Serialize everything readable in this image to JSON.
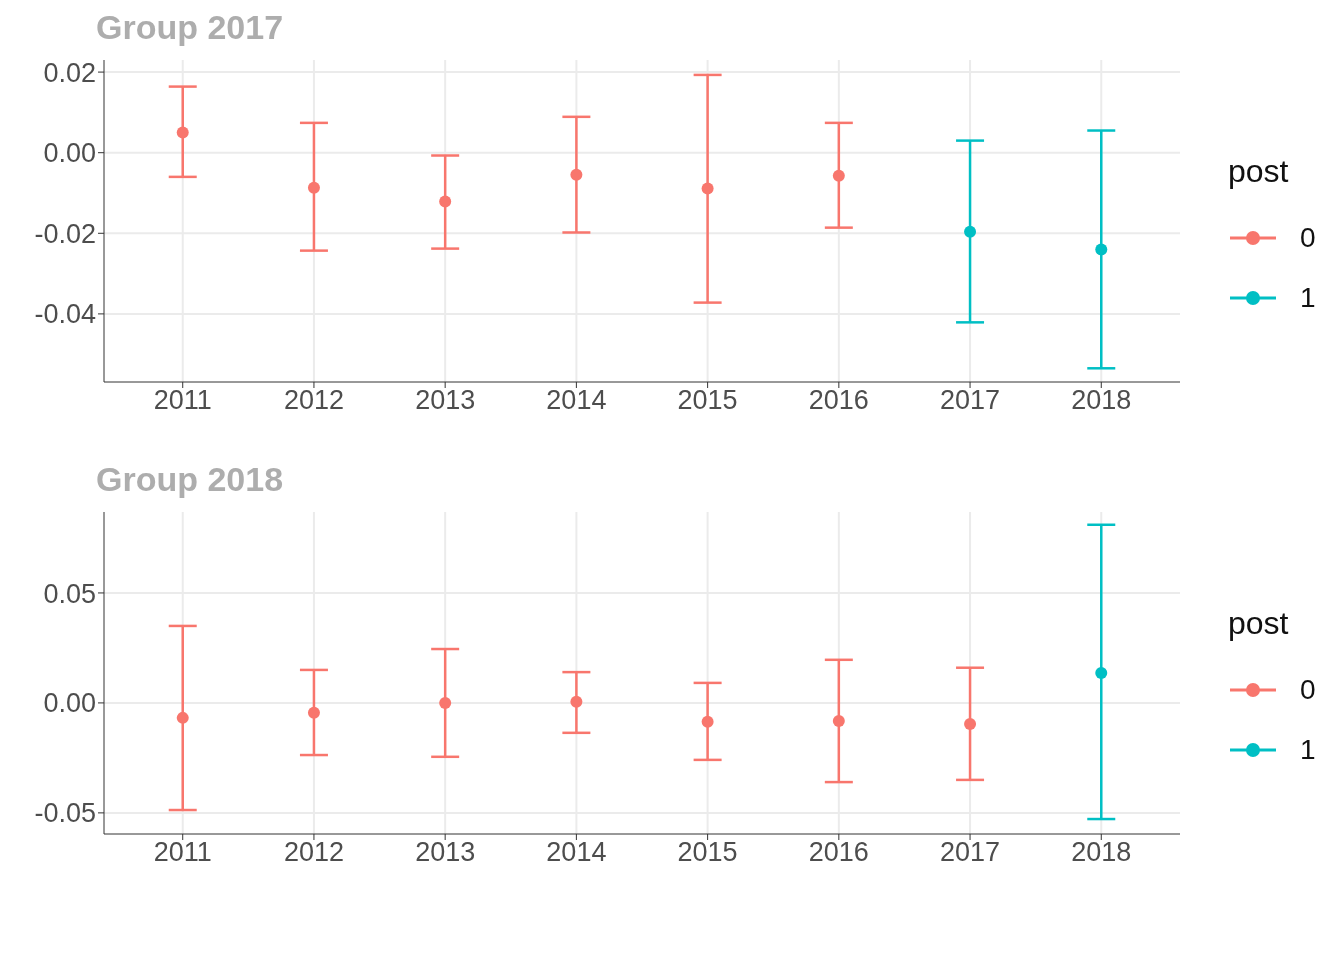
{
  "chart_data": [
    {
      "type": "scatter",
      "title": "Group 2017",
      "categories": [
        "2011",
        "2012",
        "2013",
        "2014",
        "2015",
        "2016",
        "2017",
        "2018"
      ],
      "ylim": [
        -0.0569,
        0.023
      ],
      "yticks": [
        {
          "value": 0.02,
          "label": "0.02"
        },
        {
          "value": 0,
          "label": "0.00"
        },
        {
          "value": -0.02,
          "label": "-0.02"
        },
        {
          "value": -0.04,
          "label": "-0.04"
        }
      ],
      "grid": true,
      "legend": "right",
      "legend_title": "post",
      "marker": "circle",
      "series": [
        {
          "name": "0",
          "color": "#f8766d",
          "values": [
            0.005,
            -0.0087,
            -0.0121,
            -0.0055,
            -0.0089,
            -0.0057,
            null,
            null
          ],
          "errors": [
            [
              -0.006,
              0.0164
            ],
            [
              -0.0243,
              0.0074
            ],
            [
              -0.0238,
              -0.0007
            ],
            [
              -0.0198,
              0.0089
            ],
            [
              -0.0372,
              0.0193
            ],
            [
              -0.0186,
              0.0074
            ],
            null,
            null
          ]
        },
        {
          "name": "1",
          "color": "#00bfc4",
          "values": [
            null,
            null,
            null,
            null,
            null,
            null,
            -0.0196,
            -0.024
          ],
          "errors": [
            null,
            null,
            null,
            null,
            null,
            null,
            [
              -0.0421,
              0.003
            ],
            [
              -0.0535,
              0.0055
            ]
          ]
        }
      ]
    },
    {
      "type": "scatter",
      "title": "Group 2018",
      "categories": [
        "2011",
        "2012",
        "2013",
        "2014",
        "2015",
        "2016",
        "2017",
        "2018"
      ],
      "ylim": [
        -0.0596,
        0.0868
      ],
      "yticks": [
        0.05,
        {
          "value": 0,
          "label": "0.00"
        },
        -0.05
      ],
      "grid": true,
      "legend": "right",
      "legend_title": "post",
      "marker": "circle",
      "series": [
        {
          "name": "0",
          "color": "#f8766d",
          "values": [
            -0.0068,
            -0.0045,
            0.0,
            0.0005,
            -0.0086,
            -0.0082,
            -0.0096,
            null
          ],
          "errors": [
            [
              -0.0487,
              0.035
            ],
            [
              -0.0237,
              0.015
            ],
            [
              -0.0245,
              0.0245
            ],
            [
              -0.0136,
              0.014
            ],
            [
              -0.0259,
              0.0091
            ],
            [
              -0.036,
              0.0196
            ],
            [
              -0.035,
              0.016
            ],
            null
          ]
        },
        {
          "name": "1",
          "color": "#00bfc4",
          "values": [
            null,
            null,
            null,
            null,
            null,
            null,
            null,
            0.0136
          ],
          "errors": [
            null,
            null,
            null,
            null,
            null,
            null,
            null,
            [
              -0.0528,
              0.081
            ]
          ]
        }
      ]
    }
  ]
}
